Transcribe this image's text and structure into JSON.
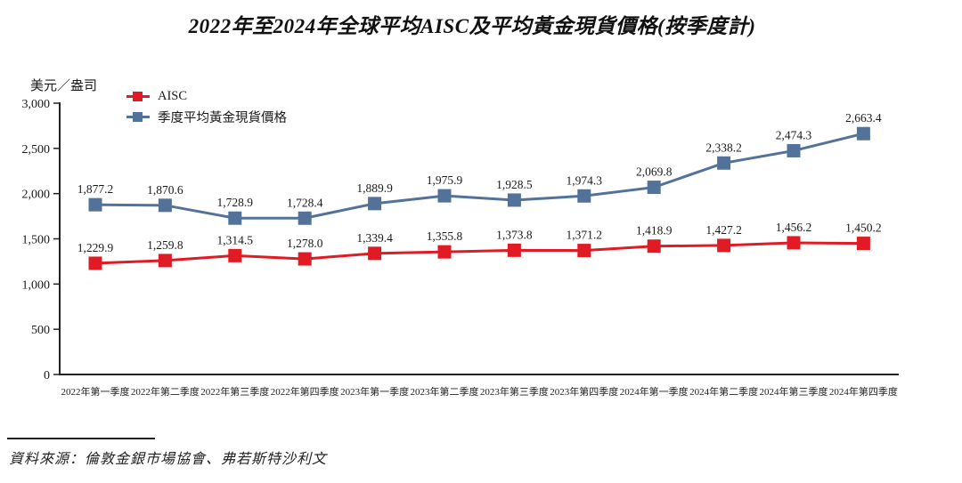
{
  "title": "2022年至2024年全球平均AISC及平均黃金現貨價格(按季度計)",
  "unit_label": "美元／盎司",
  "source_note": "資料來源：倫敦金銀市場協會、弗若斯特沙利文",
  "colors": {
    "aisc_red": "#E01B24",
    "gold_blue": "#53729A",
    "axis": "#222222",
    "text": "#1a1a1a"
  },
  "chart_data": {
    "type": "line",
    "title": "2022年至2024年全球平均AISC及平均黃金現貨價格(按季度計)",
    "ylabel": "美元／盎司",
    "xlabel": "",
    "ylim": [
      0,
      3000
    ],
    "ytick_interval": 500,
    "yticks": [
      "0",
      "500",
      "1,000",
      "1,500",
      "2,000",
      "2,500",
      "3,000"
    ],
    "grid": false,
    "legend_position": "top-left",
    "categories": [
      "2022年第一季度",
      "2022年第二季度",
      "2022年第三季度",
      "2022年第四季度",
      "2023年第一季度",
      "2023年第二季度",
      "2023年第三季度",
      "2023年第四季度",
      "2024年第一季度",
      "2024年第二季度",
      "2024年第三季度",
      "2024年第四季度"
    ],
    "series": [
      {
        "name": "AISC",
        "color": "#E01B24",
        "values": [
          1229.9,
          1259.8,
          1314.5,
          1278.0,
          1339.4,
          1355.8,
          1373.8,
          1371.2,
          1418.9,
          1427.2,
          1456.2,
          1450.2
        ],
        "labels": [
          "1,229.9",
          "1,259.8",
          "1,314.5",
          "1,278.0",
          "1,339.4",
          "1,355.8",
          "1,373.8",
          "1,371.2",
          "1,418.9",
          "1,427.2",
          "1,456.2",
          "1,450.2"
        ]
      },
      {
        "name": "季度平均黃金現貨價格",
        "color": "#53729A",
        "values": [
          1877.2,
          1870.6,
          1728.9,
          1728.4,
          1889.9,
          1975.9,
          1928.5,
          1974.3,
          2069.8,
          2338.2,
          2474.3,
          2663.4
        ],
        "labels": [
          "1,877.2",
          "1,870.6",
          "1,728.9",
          "1,728.4",
          "1,889.9",
          "1,975.9",
          "1,928.5",
          "1,974.3",
          "2,069.8",
          "2,338.2",
          "2,474.3",
          "2,663.4"
        ]
      }
    ]
  }
}
